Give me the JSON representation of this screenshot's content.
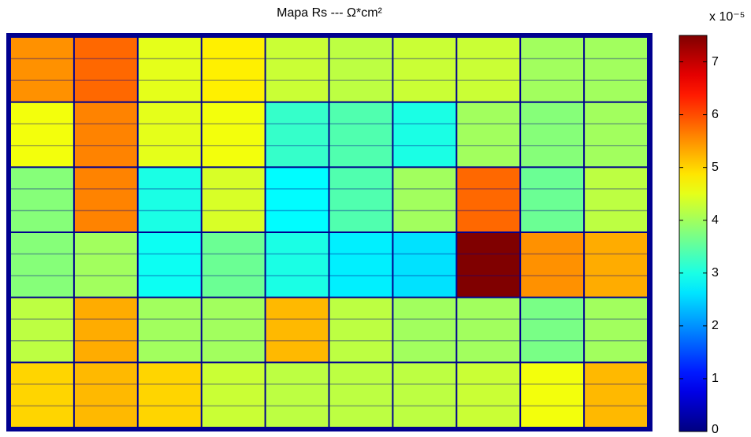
{
  "chart_data": {
    "type": "heatmap",
    "title": "Mapa Rs --- Ω*cm²",
    "colorbar_label": "x 10⁻⁵",
    "colormap": "jet",
    "values": [
      [
        5.5,
        5.8,
        4.5,
        4.8,
        4.3,
        4.2,
        4.3,
        4.3,
        4.0,
        4.0
      ],
      [
        4.6,
        5.6,
        4.5,
        4.6,
        3.2,
        3.4,
        3.0,
        4.0,
        3.8,
        4.0
      ],
      [
        3.8,
        5.6,
        3.0,
        4.4,
        2.8,
        3.4,
        4.0,
        5.8,
        3.6,
        4.2
      ],
      [
        3.8,
        4.0,
        2.9,
        3.6,
        3.0,
        2.7,
        2.6,
        7.5,
        5.5,
        5.3
      ],
      [
        4.2,
        5.3,
        4.0,
        4.0,
        5.2,
        4.2,
        4.0,
        4.0,
        3.7,
        4.0
      ],
      [
        5.0,
        5.2,
        5.0,
        4.3,
        4.2,
        4.2,
        4.2,
        4.3,
        4.6,
        5.2
      ]
    ],
    "clim": [
      0,
      7.5
    ],
    "cticks": [
      0,
      1,
      2,
      3,
      4,
      5,
      6,
      7
    ]
  }
}
